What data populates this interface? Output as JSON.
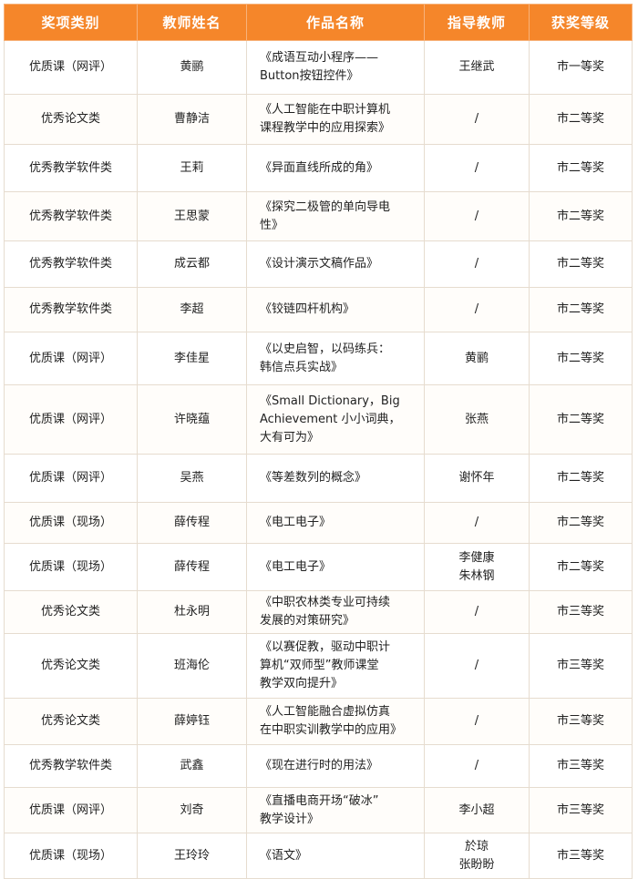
{
  "colors": {
    "header_bg": "#f5862a",
    "header_text": "#ffffff",
    "border": "#e6dccf"
  },
  "table": {
    "headers": [
      "奖项类别",
      "教师姓名",
      "作品名称",
      "指导教师",
      "获奖等级"
    ],
    "rows": [
      {
        "category": "优质课（网评）",
        "teacher": "黄鹂",
        "work": "《成语互动小程序——\nButton按钮控件》",
        "advisor": "王继武",
        "award": "市一等奖"
      },
      {
        "category": "优秀论文类",
        "teacher": "曹静洁",
        "work": "《人工智能在中职计算机\n课程教学中的应用探索》",
        "advisor": "/",
        "award": "市二等奖"
      },
      {
        "category": "优秀教学软件类",
        "teacher": "王莉",
        "work": "《异面直线所成的角》",
        "advisor": "/",
        "award": "市二等奖"
      },
      {
        "category": "优秀教学软件类",
        "teacher": "王思蒙",
        "work": "《探究二极管的单向导电\n性》",
        "advisor": "/",
        "award": "市二等奖"
      },
      {
        "category": "优秀教学软件类",
        "teacher": "成云都",
        "work": "《设计演示文稿作品》",
        "advisor": "/",
        "award": "市二等奖"
      },
      {
        "category": "优秀教学软件类",
        "teacher": "李超",
        "work": "《铰链四杆机构》",
        "advisor": "/",
        "award": "市二等奖"
      },
      {
        "category": "优质课（网评）",
        "teacher": "李佳星",
        "work": "《以史启智，以码练兵：\n韩信点兵实战》",
        "advisor": "黄鹂",
        "award": "市二等奖"
      },
      {
        "category": "优质课（网评）",
        "teacher": "许晓蕴",
        "work": "《Small Dictionary，Big\nAchievement 小小词典，\n大有可为》",
        "advisor": "张燕",
        "award": "市二等奖"
      },
      {
        "category": "优质课（网评）",
        "teacher": "吴燕",
        "work": "《等差数列的概念》",
        "advisor": "谢怀年",
        "award": "市二等奖"
      },
      {
        "category": "优质课（现场）",
        "teacher": "薛传程",
        "work": "《电工电子》",
        "advisor": "/",
        "award": "市二等奖"
      },
      {
        "category": "优质课（现场）",
        "teacher": "薛传程",
        "work": "《电工电子》",
        "advisor": "李健康\n朱林钢",
        "award": "市二等奖"
      },
      {
        "category": "优秀论文类",
        "teacher": "杜永明",
        "work": "《中职农林类专业可持续\n发展的对策研究》",
        "advisor": "/",
        "award": "市三等奖"
      },
      {
        "category": "优秀论文类",
        "teacher": "班海伦",
        "work": "《以赛促教，驱动中职计\n算机“双师型”教师课堂\n教学双向提升》",
        "advisor": "/",
        "award": "市三等奖"
      },
      {
        "category": "优秀论文类",
        "teacher": "薛婷钰",
        "work": "《人工智能融合虚拟仿真\n在中职实训教学中的应用》",
        "advisor": "/",
        "award": "市三等奖"
      },
      {
        "category": "优秀教学软件类",
        "teacher": "武鑫",
        "work": "《现在进行时的用法》",
        "advisor": "/",
        "award": "市三等奖"
      },
      {
        "category": "优质课（网评）",
        "teacher": "刘奇",
        "work": "《直播电商开场“破冰”\n教学设计》",
        "advisor": "李小超",
        "award": "市三等奖"
      },
      {
        "category": "优质课（现场）",
        "teacher": "王玲玲",
        "work": "《语文》",
        "advisor": "於琼\n张盼盼",
        "award": "市三等奖"
      }
    ]
  }
}
